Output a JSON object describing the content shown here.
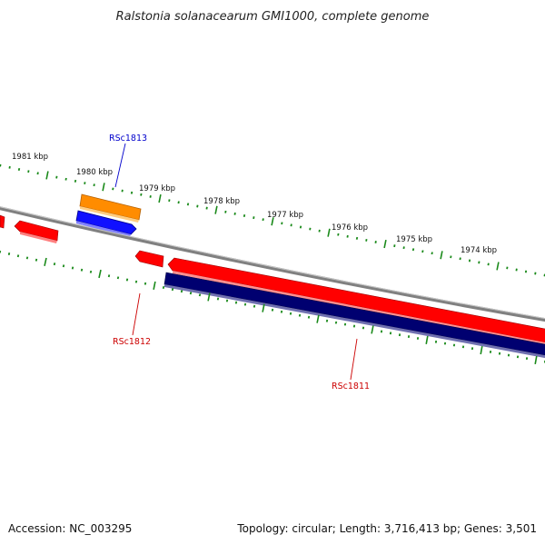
{
  "title": "Ralstonia solanacearum GMI1000, complete genome",
  "footer": {
    "accession": "Accession: NC_003295",
    "summary": "Topology: circular; Length: 3,716,413 bp; Genes: 3,501"
  },
  "ruler": {
    "labels": [
      "1981 kbp",
      "1980 kbp",
      "1979 kbp",
      "1978 kbp",
      "1977 kbp",
      "1976 kbp",
      "1975 kbp",
      "1974 kbp"
    ]
  },
  "genes": {
    "rsc1813": {
      "label": "RSc1813",
      "color": "#0000cc"
    },
    "rsc1812": {
      "label": "RSc1812",
      "color": "#cc0000"
    },
    "rsc1811": {
      "label": "RSc1811",
      "color": "#cc0000"
    }
  },
  "colors": {
    "backbone": "#808080",
    "tick": "#1a8a1a",
    "forward_gene": "#ff0000",
    "reverse_gene": "#ff0000",
    "orange_feature": "#ff8c00",
    "blue_feature": "#1010ff",
    "navy_feature": "#000070"
  }
}
